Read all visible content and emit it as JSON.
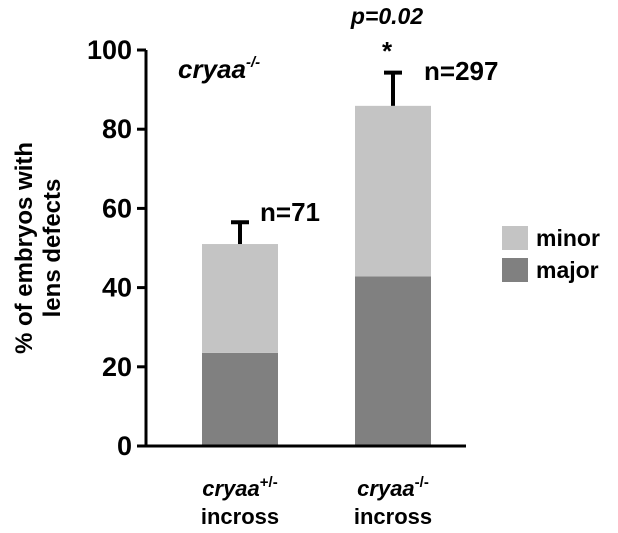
{
  "chart_data": {
    "type": "bar",
    "stacked": true,
    "title": "",
    "inset_label": {
      "main": "cryaa",
      "superscript": "-/-"
    },
    "categories": [
      {
        "main": "cryaa",
        "superscript": "+/-",
        "line2": "incross"
      },
      {
        "main": "cryaa",
        "superscript": "-/-",
        "line2": "incross"
      }
    ],
    "series": [
      {
        "name": "major",
        "values": [
          23.5,
          42.8
        ],
        "color": "#808080"
      },
      {
        "name": "minor",
        "values": [
          27.5,
          43.1
        ],
        "color": "#c4c4c4"
      }
    ],
    "totals": [
      51,
      85.9
    ],
    "error_upper": [
      56.5,
      94.3
    ],
    "n_labels": [
      "n=71",
      "n=297"
    ],
    "significance": {
      "p_text": "p=0.02",
      "marker": "*"
    },
    "ylabel": "% of embryos with\nlens defects",
    "ylabel_lines": [
      "% of embryos with",
      "lens defects"
    ],
    "ylim": [
      0,
      100
    ],
    "yticks": [
      0,
      20,
      40,
      60,
      80,
      100
    ],
    "legend": [
      "minor",
      "major"
    ],
    "legend_position": "right",
    "grid": false
  }
}
